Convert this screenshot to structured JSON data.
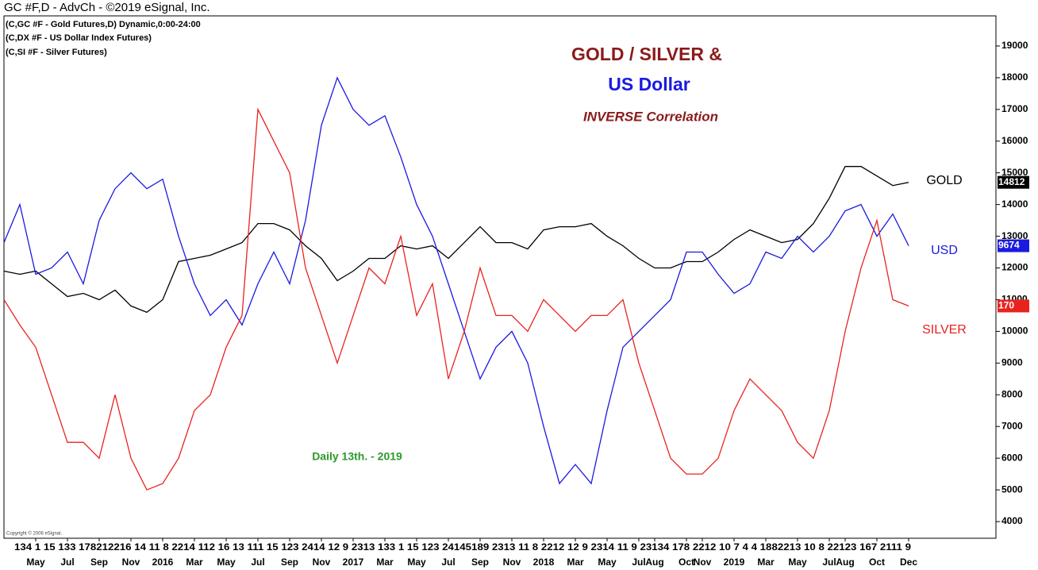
{
  "chart_data": {
    "type": "line",
    "header": "GC #F,D - AdvCh - ©2019 eSignal, Inc.",
    "symbols": [
      "(C,GC #F - Gold Futures,D) Dynamic,0:00-24:00",
      "(C,DX #F - US Dollar Index Futures)",
      "(C,SI #F - Silver Futures)"
    ],
    "title": "GOLD / SILVER &",
    "title2": "US Dollar",
    "subtitle": "INVERSE Correlation",
    "annotation": "Daily 13th. - 2019",
    "copyright": "Copyright © 2006 eSignal.",
    "day_labels": "134   1 15 133 178212216  14 11  8 2214 112 16 13 111 15 123   2414 12 9 2313 133   1 15 123  24145189 2313  11 8 2212 12 9 2314 11  9 23134 178 2212 10 7   4   4 1882213 10  8 22123 167 2111 9",
    "categories": [
      null,
      null,
      "May",
      null,
      "Jul",
      null,
      "Sep",
      null,
      "Nov",
      null,
      "2016",
      null,
      "Mar",
      null,
      "May",
      null,
      "Jul",
      null,
      "Sep",
      null,
      "Nov",
      null,
      "2017",
      null,
      "Mar",
      null,
      "May",
      null,
      "Jul",
      null,
      "Sep",
      null,
      "Nov",
      null,
      "2018",
      null,
      "Mar",
      null,
      "May",
      null,
      "Jul",
      "Aug",
      null,
      "Oct",
      "Nov",
      null,
      "2019",
      null,
      "Mar",
      null,
      "May",
      null,
      "Jul",
      "Aug",
      null,
      "Oct",
      null,
      "Dec"
    ],
    "series": [
      {
        "name": "GOLD",
        "color": "#000000",
        "end_label": "14812",
        "values": [
          11900,
          11800,
          11900,
          11500,
          11100,
          11200,
          11000,
          11300,
          10800,
          10600,
          11000,
          12200,
          12300,
          12400,
          12600,
          12800,
          13400,
          13400,
          13200,
          12700,
          12300,
          11600,
          11900,
          12300,
          12300,
          12700,
          12600,
          12700,
          12300,
          12800,
          13300,
          12800,
          12800,
          12600,
          13200,
          13300,
          13300,
          13400,
          13000,
          12700,
          12300,
          12000,
          12000,
          12200,
          12200,
          12500,
          12900,
          13200,
          13000,
          12800,
          12900,
          13400,
          14200,
          15200,
          15200,
          14900,
          14600,
          14700
        ]
      },
      {
        "name": "USD",
        "color": "#1a1adf",
        "end_label": "9674",
        "values": [
          12800,
          14000,
          11800,
          12000,
          12500,
          11500,
          13500,
          14500,
          15000,
          14500,
          14800,
          13000,
          11500,
          10500,
          11000,
          10200,
          11500,
          12500,
          11500,
          13500,
          16500,
          18000,
          17000,
          16500,
          16800,
          15500,
          14000,
          13000,
          11500,
          10000,
          8500,
          9500,
          10000,
          9000,
          7000,
          5200,
          5800,
          5200,
          7500,
          9500,
          10000,
          10500,
          11000,
          12500,
          12500,
          11800,
          11200,
          11500,
          12500,
          12300,
          13000,
          12500,
          13000,
          13800,
          14000,
          13000,
          13700,
          12700
        ]
      },
      {
        "name": "SILVER",
        "color": "#e8231e",
        "end_label": "170",
        "values": [
          11000,
          10200,
          9500,
          8000,
          6500,
          6500,
          6000,
          8000,
          6000,
          5000,
          5200,
          6000,
          7500,
          8000,
          9500,
          10500,
          17000,
          16000,
          15000,
          12000,
          10500,
          9000,
          10500,
          12000,
          11500,
          13000,
          10500,
          11500,
          8500,
          10000,
          12000,
          10500,
          10500,
          10000,
          11000,
          10500,
          10000,
          10500,
          10500,
          11000,
          9000,
          7500,
          6000,
          5500,
          5500,
          6000,
          7500,
          8500,
          8000,
          7500,
          6500,
          6000,
          7500,
          10000,
          12000,
          13500,
          11000,
          10800
        ]
      }
    ],
    "ylim": [
      3475,
      19950
    ],
    "yticks": [
      4000,
      5000,
      6000,
      7000,
      8000,
      9000,
      10000,
      11000,
      12000,
      13000,
      14000,
      15000,
      16000,
      17000,
      18000,
      19000
    ],
    "grid": false
  }
}
